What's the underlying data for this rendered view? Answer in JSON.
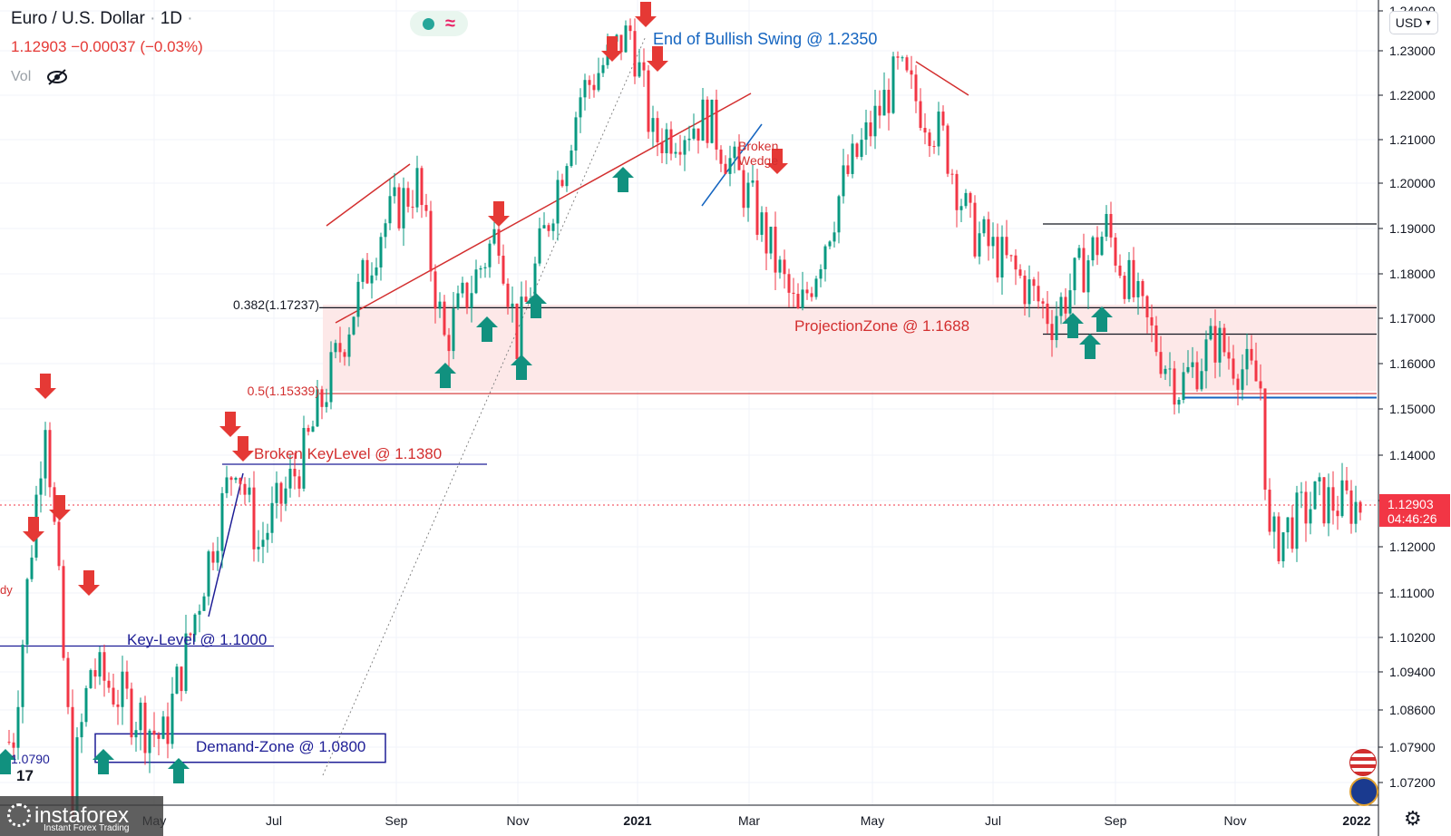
{
  "header": {
    "symbol": "Euro / U.S. Dollar",
    "timeframe": "1D",
    "price": "1.12903",
    "change": "−0.00037",
    "change_pct": "(−0.03%)",
    "vol_label": "Vol"
  },
  "currency_button": "USD",
  "watermark": {
    "tv": "17",
    "brand": "instaforex",
    "tagline": "Instant Forex Trading"
  },
  "price_badge": {
    "price": "1.12903",
    "countdown": "04:46:26"
  },
  "colors": {
    "up": "#089981",
    "down": "#f23645",
    "annotation_red": "#d32f2f",
    "annotation_blue": "#1e1e96",
    "zone_fill": "#fde8e8"
  },
  "chart_data": {
    "type": "candlestick",
    "timeframe": "1D",
    "y_ticks": [
      "1.24000",
      "1.23000",
      "1.22000",
      "1.21000",
      "1.20000",
      "1.19000",
      "1.18000",
      "1.17000",
      "1.16000",
      "1.15000",
      "1.14000",
      "1.13000",
      "1.12000",
      "1.11000",
      "1.10200",
      "1.09400",
      "1.08600",
      "1.07900",
      "1.07200"
    ],
    "x_ticks": [
      "May",
      "Jul",
      "Sep",
      "Nov",
      "2021",
      "Mar",
      "May",
      "Jul",
      "Sep",
      "Nov",
      "2022"
    ],
    "last_price": 1.12903,
    "series": [
      {
        "date": "2020-03",
        "close": 1.08
      },
      {
        "date": "2020-03",
        "close": 1.15
      },
      {
        "date": "2020-03",
        "close": 1.07
      },
      {
        "date": "2020-04",
        "close": 1.095
      },
      {
        "date": "2020-05",
        "close": 1.08
      },
      {
        "date": "2020-06",
        "close": 1.14
      },
      {
        "date": "2020-06",
        "close": 1.12
      },
      {
        "date": "2020-07",
        "close": 1.14
      },
      {
        "date": "2020-08",
        "close": 1.19
      },
      {
        "date": "2020-09",
        "close": 1.2
      },
      {
        "date": "2020-10",
        "close": 1.165
      },
      {
        "date": "2020-11",
        "close": 1.19
      },
      {
        "date": "2020-11",
        "close": 1.165
      },
      {
        "date": "2020-12",
        "close": 1.22
      },
      {
        "date": "2021-01",
        "close": 1.235
      },
      {
        "date": "2021-01",
        "close": 1.21
      },
      {
        "date": "2021-02",
        "close": 1.215
      },
      {
        "date": "2021-03",
        "close": 1.195
      },
      {
        "date": "2021-03",
        "close": 1.17
      },
      {
        "date": "2021-04",
        "close": 1.2
      },
      {
        "date": "2021-05",
        "close": 1.225
      },
      {
        "date": "2021-06",
        "close": 1.21
      },
      {
        "date": "2021-06",
        "close": 1.19
      },
      {
        "date": "2021-07",
        "close": 1.18
      },
      {
        "date": "2021-08",
        "close": 1.17
      },
      {
        "date": "2021-09",
        "close": 1.19
      },
      {
        "date": "2021-09",
        "close": 1.17
      },
      {
        "date": "2021-10",
        "close": 1.155
      },
      {
        "date": "2021-10",
        "close": 1.165
      },
      {
        "date": "2021-11",
        "close": 1.155
      },
      {
        "date": "2021-11",
        "close": 1.12
      },
      {
        "date": "2021-12",
        "close": 1.13
      },
      {
        "date": "2021-12",
        "close": 1.129
      }
    ],
    "annotations": [
      {
        "text": "End of Bullish Swing @ 1.2350",
        "value": 1.235,
        "color": "#1565c0"
      },
      {
        "text": "0.382(1.17237)",
        "value": 1.17237,
        "color": "#131722"
      },
      {
        "text": "0.5(1.15339)",
        "value": 1.15339,
        "color": "#d32f2f"
      },
      {
        "text": "ProjectionZone @ 1.1688",
        "value": 1.1688,
        "color": "#d32f2f"
      },
      {
        "text": "Broken KeyLevel @ 1.1380",
        "value": 1.138,
        "color": "#d32f2f"
      },
      {
        "text": "Key-Level @ 1.1000",
        "value": 1.1,
        "color": "#1e1e96"
      },
      {
        "text": "Demand-Zone @ 1.0800",
        "value": 1.08,
        "color": "#1e1e96"
      },
      {
        "text": "1.0790",
        "value": 1.079,
        "color": "#1e1e96"
      },
      {
        "text": "Broken",
        "value": null,
        "color": "#d32f2f"
      },
      {
        "text": "Wedge",
        "value": null,
        "color": "#d32f2f"
      },
      {
        "text": "dy",
        "value": null,
        "color": "#d32f2f"
      }
    ]
  }
}
